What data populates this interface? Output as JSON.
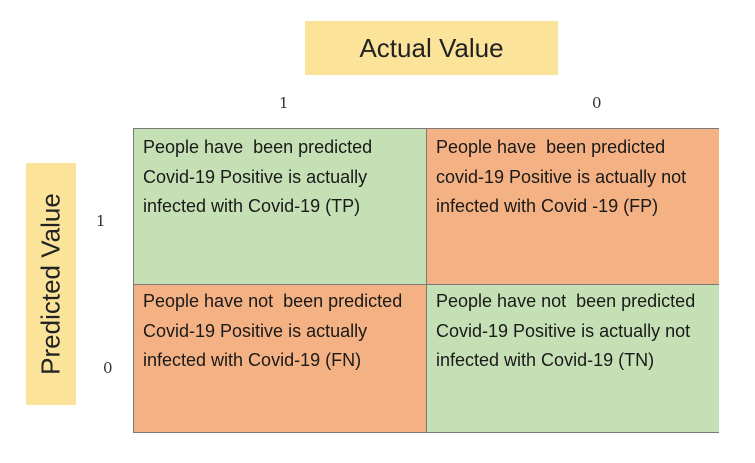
{
  "header": {
    "actual_label": "Actual Value",
    "predicted_label": "Predicted Value"
  },
  "columns": [
    "1",
    "0"
  ],
  "rows": [
    "1",
    "0"
  ],
  "cells": {
    "tp": {
      "text": "People have  been predicted Covid-19 Positive is actually infected with Covid-19 (TP)",
      "color": "#c5e0b4"
    },
    "fp": {
      "text": "People have  been predicted covid-19 Positive is actually not infected with Covid -19 (FP)",
      "color": "#f4b183"
    },
    "fn": {
      "text": "People have not  been predicted  Covid-19 Positive is actually infected with Covid-19 (FN)",
      "color": "#f4b183"
    },
    "tn": {
      "text": "People have not  been predicted  Covid-19 Positive is actually not infected with Covid-19 (TN)",
      "color": "#c5e0b4"
    }
  },
  "colors": {
    "label_box": "#fbe49a",
    "true_cell": "#c5e0b4",
    "false_cell": "#f4b183"
  }
}
